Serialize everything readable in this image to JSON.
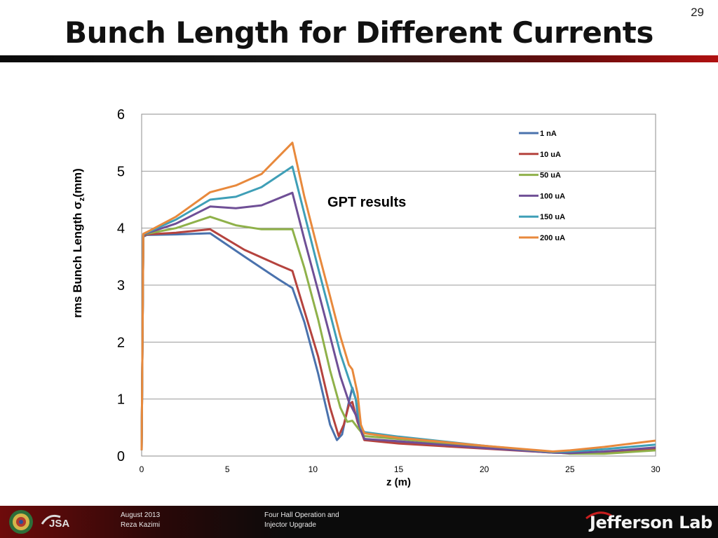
{
  "slide": {
    "number": "29",
    "title": "Bunch Length for Different Currents"
  },
  "footer": {
    "date": "August 2013",
    "author": "Reza Kazimi",
    "topic_line1": "Four Hall Operation and",
    "topic_line2": "Injector Upgrade",
    "logo_text": "Jefferson Lab",
    "jsa_text": "JSA"
  },
  "colors": {
    "1 nA": "#4a72ad",
    "10 uA": "#b5433e",
    "50 uA": "#8fb14a",
    "100 uA": "#6f4f96",
    "150 uA": "#3f9fb7",
    "200 uA": "#e8893c",
    "footer_red": "#8a0c0c"
  },
  "chart_data": {
    "type": "line",
    "xlabel": "z (m)",
    "ylabel": "rms Bunch Length σz(mm)",
    "annotation": "GPT results",
    "xlim": [
      0,
      30
    ],
    "ylim": [
      0,
      6
    ],
    "xticks": [
      0,
      5,
      10,
      15,
      20,
      25,
      30
    ],
    "yticks": [
      0,
      1,
      2,
      3,
      4,
      5,
      6
    ],
    "grid": "horizontal",
    "legend_position": "top-right",
    "series": [
      {
        "name": "1 nA",
        "points": [
          [
            0,
            0.1
          ],
          [
            0.1,
            3.85
          ],
          [
            0.3,
            3.88
          ],
          [
            2,
            3.89
          ],
          [
            4,
            3.91
          ],
          [
            6,
            3.5
          ],
          [
            8,
            3.1
          ],
          [
            8.8,
            2.95
          ],
          [
            9.5,
            2.35
          ],
          [
            10.3,
            1.45
          ],
          [
            11,
            0.55
          ],
          [
            11.4,
            0.28
          ],
          [
            11.7,
            0.38
          ],
          [
            12.1,
            0.95
          ],
          [
            12.3,
            1.2
          ],
          [
            12.5,
            1.0
          ],
          [
            12.7,
            0.5
          ],
          [
            13,
            0.3
          ],
          [
            15,
            0.24
          ],
          [
            20,
            0.14
          ],
          [
            24,
            0.07
          ],
          [
            25,
            0.05
          ],
          [
            27,
            0.06
          ],
          [
            30,
            0.12
          ]
        ]
      },
      {
        "name": "10 uA",
        "points": [
          [
            0,
            0.1
          ],
          [
            0.1,
            3.86
          ],
          [
            0.3,
            3.89
          ],
          [
            2,
            3.92
          ],
          [
            4,
            3.98
          ],
          [
            6,
            3.62
          ],
          [
            8,
            3.35
          ],
          [
            8.8,
            3.25
          ],
          [
            9.5,
            2.55
          ],
          [
            10.3,
            1.75
          ],
          [
            11,
            0.85
          ],
          [
            11.5,
            0.35
          ],
          [
            11.8,
            0.55
          ],
          [
            12.1,
            0.9
          ],
          [
            12.3,
            0.95
          ],
          [
            12.6,
            0.6
          ],
          [
            13,
            0.28
          ],
          [
            15,
            0.22
          ],
          [
            20,
            0.13
          ],
          [
            24,
            0.06
          ],
          [
            25,
            0.05
          ],
          [
            27,
            0.06
          ],
          [
            30,
            0.12
          ]
        ]
      },
      {
        "name": "50 uA",
        "points": [
          [
            0,
            0.1
          ],
          [
            0.1,
            3.88
          ],
          [
            0.3,
            3.9
          ],
          [
            2,
            4.0
          ],
          [
            4,
            4.2
          ],
          [
            5.5,
            4.05
          ],
          [
            7,
            3.98
          ],
          [
            8.8,
            3.98
          ],
          [
            9.5,
            3.3
          ],
          [
            10.3,
            2.4
          ],
          [
            11,
            1.5
          ],
          [
            11.6,
            0.85
          ],
          [
            12,
            0.6
          ],
          [
            12.3,
            0.62
          ],
          [
            12.6,
            0.5
          ],
          [
            13,
            0.35
          ],
          [
            15,
            0.3
          ],
          [
            20,
            0.16
          ],
          [
            24,
            0.07
          ],
          [
            25,
            0.04
          ],
          [
            27,
            0.04
          ],
          [
            30,
            0.1
          ]
        ]
      },
      {
        "name": "100 uA",
        "points": [
          [
            0,
            0.1
          ],
          [
            0.1,
            3.88
          ],
          [
            0.3,
            3.91
          ],
          [
            2,
            4.08
          ],
          [
            4,
            4.38
          ],
          [
            5.5,
            4.35
          ],
          [
            7,
            4.4
          ],
          [
            8.8,
            4.62
          ],
          [
            9.5,
            3.8
          ],
          [
            10.3,
            2.9
          ],
          [
            11,
            2.1
          ],
          [
            11.6,
            1.4
          ],
          [
            12.1,
            0.95
          ],
          [
            12.5,
            0.72
          ],
          [
            12.8,
            0.45
          ],
          [
            13,
            0.3
          ],
          [
            15,
            0.26
          ],
          [
            20,
            0.14
          ],
          [
            24,
            0.06
          ],
          [
            25,
            0.05
          ],
          [
            27,
            0.08
          ],
          [
            30,
            0.15
          ]
        ]
      },
      {
        "name": "150 uA",
        "points": [
          [
            0,
            0.1
          ],
          [
            0.1,
            3.89
          ],
          [
            0.3,
            3.92
          ],
          [
            2,
            4.15
          ],
          [
            4,
            4.5
          ],
          [
            5.5,
            4.55
          ],
          [
            7,
            4.72
          ],
          [
            8.8,
            5.08
          ],
          [
            9.5,
            4.25
          ],
          [
            10.3,
            3.3
          ],
          [
            11,
            2.5
          ],
          [
            11.6,
            1.8
          ],
          [
            12.1,
            1.35
          ],
          [
            12.5,
            1.0
          ],
          [
            12.8,
            0.5
          ],
          [
            13,
            0.42
          ],
          [
            15,
            0.34
          ],
          [
            20,
            0.18
          ],
          [
            24,
            0.07
          ],
          [
            25,
            0.08
          ],
          [
            27,
            0.12
          ],
          [
            30,
            0.2
          ]
        ]
      },
      {
        "name": "200 uA",
        "points": [
          [
            0,
            0.1
          ],
          [
            0.1,
            3.9
          ],
          [
            0.3,
            3.93
          ],
          [
            2,
            4.2
          ],
          [
            4,
            4.63
          ],
          [
            5.5,
            4.75
          ],
          [
            7,
            4.95
          ],
          [
            8.8,
            5.5
          ],
          [
            9.5,
            4.55
          ],
          [
            10.3,
            3.6
          ],
          [
            11,
            2.8
          ],
          [
            11.6,
            2.1
          ],
          [
            12.1,
            1.6
          ],
          [
            12.3,
            1.52
          ],
          [
            12.6,
            1.1
          ],
          [
            12.8,
            0.55
          ],
          [
            13,
            0.4
          ],
          [
            15,
            0.32
          ],
          [
            20,
            0.18
          ],
          [
            24,
            0.08
          ],
          [
            25,
            0.1
          ],
          [
            27,
            0.16
          ],
          [
            30,
            0.27
          ]
        ]
      }
    ]
  }
}
